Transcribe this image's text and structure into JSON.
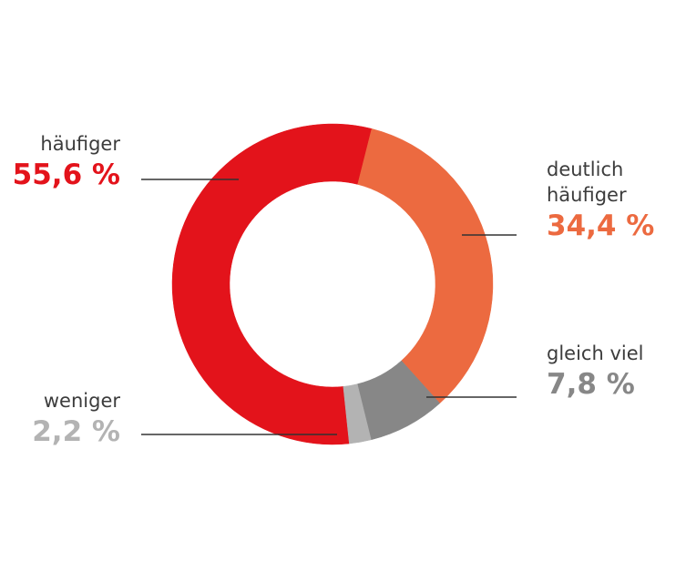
{
  "chart_data": {
    "type": "pie",
    "categories": [
      "häufiger",
      "deutlich häufiger",
      "gleich viel",
      "weniger"
    ],
    "values": [
      55.6,
      34.4,
      7.8,
      2.2
    ],
    "value_labels": [
      "55,6 %",
      "34,4 %",
      "7,8 %",
      "2,2 %"
    ],
    "colors": [
      "#e3131b",
      "#ec6a40",
      "#878787",
      "#b3b3b3"
    ],
    "donut": true
  }
}
